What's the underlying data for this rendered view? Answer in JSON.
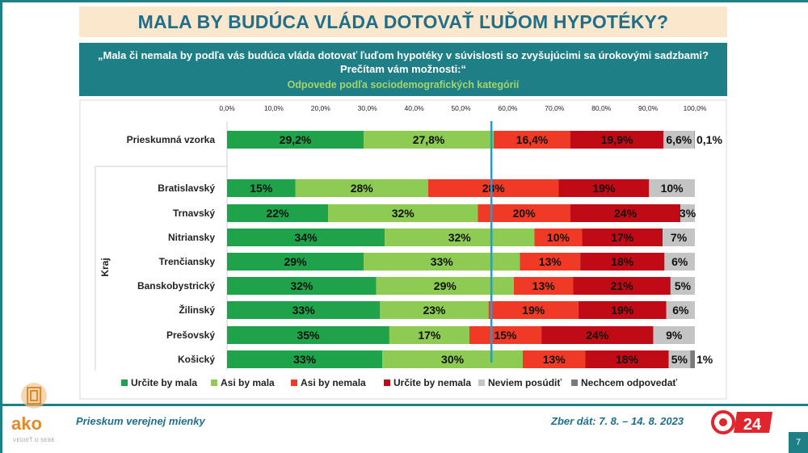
{
  "title": "MALA BY BUDÚCA VLÁDA DOTOVAŤ ĽUĎOM HYPOTÉKY?",
  "question": "„Mala či nemala by podľa vás budúca vláda dotovať ľuďom hypotéky v súvislosti so zvyšujúcimi sa úrokovými sadzbami? Prečítam vám možnosti:“",
  "subtitle": "Odpovede podľa sociodemografických kategórií",
  "footer": {
    "left": "Prieskum verejnej mienky",
    "right": "Zber dát: 7. 8. – 14. 8. 2023",
    "page": "7"
  },
  "logo": {
    "word": "ako",
    "tagline": "VEDIEŤ O SEBE",
    "brand": "24"
  },
  "chart_data": {
    "type": "bar",
    "orientation": "horizontal",
    "stacked": true,
    "xlim": [
      0,
      100
    ],
    "ticks": [
      "0,0%",
      "10,0%",
      "20,0%",
      "30,0%",
      "40,0%",
      "50,0%",
      "60,0%",
      "70,0%",
      "80,0%",
      "90,0%",
      "100,0%"
    ],
    "group_label": "Kraj",
    "reference_line": 56.5,
    "categories": [
      "Prieskumná vzorka",
      "Bratislavský",
      "Trnavský",
      "Nitriansky",
      "Trenčiansky",
      "Banskobystrický",
      "Žilinský",
      "Prešovský",
      "Košický"
    ],
    "legend_position": "bottom",
    "series": [
      {
        "name": "Určite by mala",
        "color": "#1fa34a",
        "values": [
          29.2,
          14.6,
          21.6,
          33.7,
          29.2,
          31.9,
          32.7,
          34.7,
          33.2
        ],
        "labels": [
          "29,2%",
          "15%",
          "22%",
          "34%",
          "29%",
          "32%",
          "33%",
          "35%",
          "33%"
        ]
      },
      {
        "name": "Asi by mala",
        "color": "#8dcb52",
        "values": [
          27.8,
          28.4,
          32.0,
          32.0,
          33.4,
          29.4,
          23.2,
          17.1,
          30.0
        ],
        "labels": [
          "27,8%",
          "28%",
          "32%",
          "32%",
          "33%",
          "29%",
          "23%",
          "17%",
          "30%"
        ]
      },
      {
        "name": "Asi by nemala",
        "color": "#f03a25",
        "values": [
          16.4,
          27.9,
          19.8,
          10.2,
          12.9,
          12.7,
          19.2,
          15.4,
          13.4
        ],
        "labels": [
          "16,4%",
          "28%",
          "20%",
          "10%",
          "13%",
          "13%",
          "19%",
          "15%",
          "13%"
        ]
      },
      {
        "name": "Určite by nemala",
        "color": "#c00a16",
        "values": [
          19.9,
          19.3,
          23.5,
          17.2,
          18.0,
          20.8,
          18.8,
          23.9,
          17.8
        ],
        "labels": [
          "19,9%",
          "19%",
          "24%",
          "17%",
          "18%",
          "21%",
          "19%",
          "24%",
          "18%"
        ]
      },
      {
        "name": "Neviem posúdiť",
        "color": "#c4c4c4",
        "values": [
          6.6,
          9.8,
          3.1,
          6.9,
          6.5,
          5.2,
          6.1,
          8.9,
          4.6
        ],
        "labels": [
          "6,6%",
          "10%",
          "3%",
          "7%",
          "6%",
          "5%",
          "6%",
          "9%",
          "5%"
        ]
      },
      {
        "name": "Nechcem odpovedať",
        "color": "#7a7a7a",
        "values": [
          0.1,
          0,
          0,
          0,
          0,
          0,
          0,
          0,
          1.0
        ],
        "labels": [
          "0,1%",
          "",
          "",
          "",
          "",
          "",
          "",
          "",
          "1%"
        ]
      }
    ]
  }
}
